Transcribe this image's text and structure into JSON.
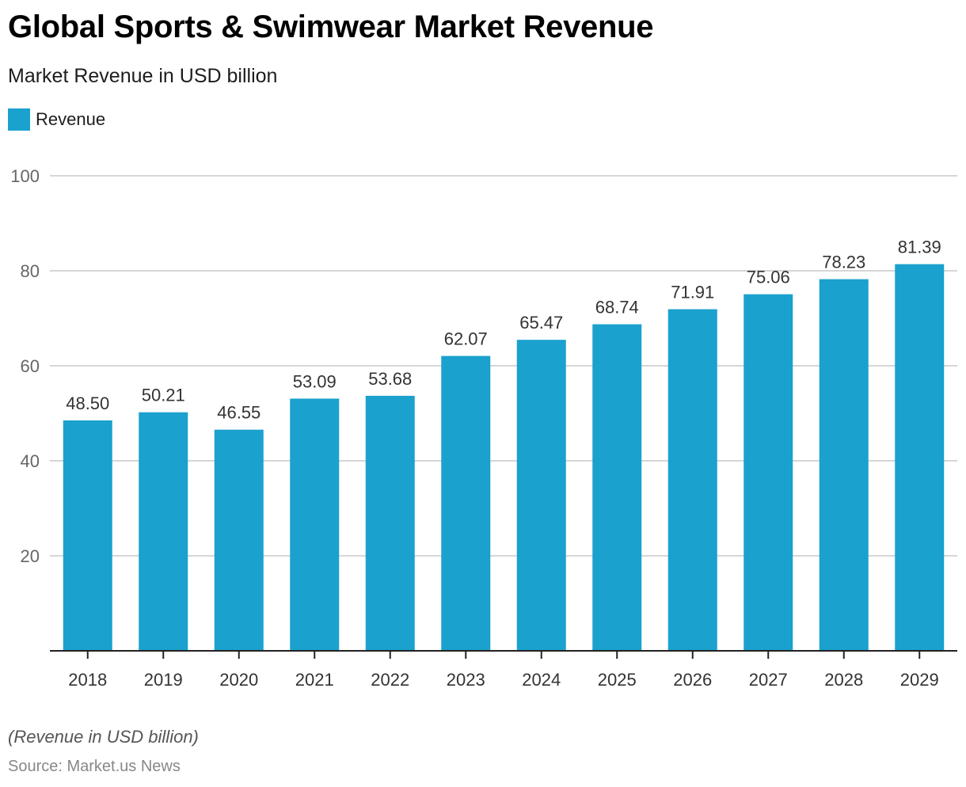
{
  "chart_data": {
    "type": "bar",
    "title": "Global Sports & Swimwear Market Revenue",
    "subtitle": "Market Revenue in USD billion",
    "xlabel": "",
    "ylabel": "",
    "categories": [
      "2018",
      "2019",
      "2020",
      "2021",
      "2022",
      "2023",
      "2024",
      "2025",
      "2026",
      "2027",
      "2028",
      "2029"
    ],
    "series": [
      {
        "name": "Revenue",
        "color": "#1aa1ce",
        "values": [
          48.5,
          50.21,
          46.55,
          53.09,
          53.68,
          62.07,
          65.47,
          68.74,
          71.91,
          75.06,
          78.23,
          81.39
        ],
        "labels": [
          "48.50",
          "50.21",
          "46.55",
          "53.09",
          "53.68",
          "62.07",
          "65.47",
          "68.74",
          "71.91",
          "75.06",
          "78.23",
          "81.39"
        ]
      }
    ],
    "ylim": [
      0,
      100
    ],
    "yticks": [
      20,
      40,
      60,
      80,
      100
    ],
    "grid": true,
    "legend_position": "top-left"
  },
  "header": {
    "title": "Global Sports & Swimwear Market Revenue",
    "subtitle": "Market Revenue in USD billion"
  },
  "legend": {
    "label": "Revenue"
  },
  "footer": {
    "note": "(Revenue in USD billion)",
    "source": "Source: Market.us News"
  }
}
